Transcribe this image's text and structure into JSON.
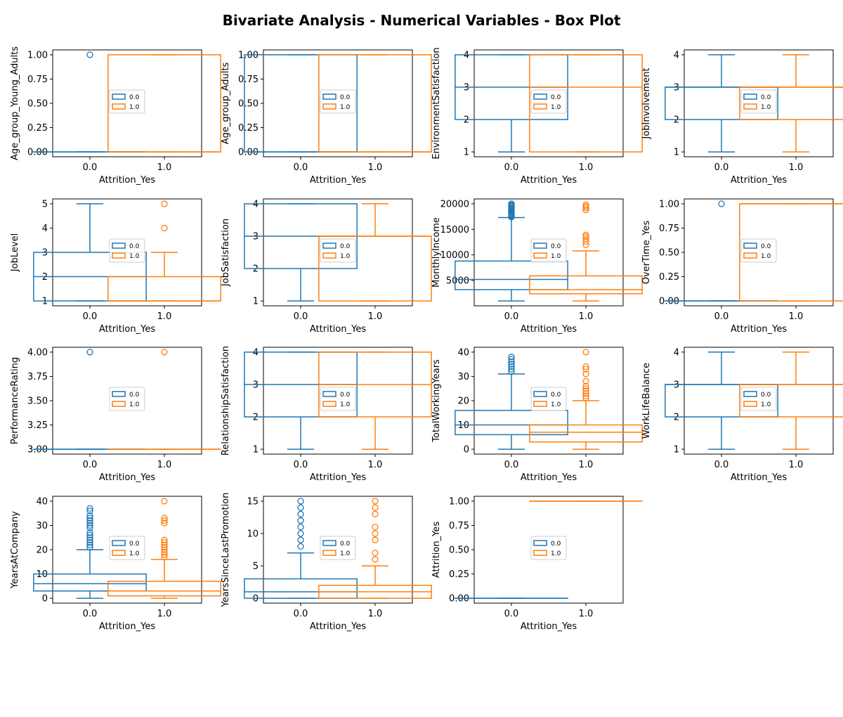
{
  "figure": {
    "title": "Bivariate Analysis - Numerical Variables - Box Plot"
  },
  "colors": {
    "0.0": "#1f77b4",
    "1.0": "#ff7f0e"
  },
  "chart_data": [
    {
      "type": "box",
      "xlabel": "Attrition_Yes",
      "ylabel": "Age_group_Young_Adults",
      "categories": [
        "0.0",
        "1.0"
      ],
      "ylim": [
        -0.05,
        1.05
      ],
      "yticks": [
        "0.00",
        "0.25",
        "0.50",
        "0.75",
        "1.00"
      ],
      "boxes": [
        {
          "group": "0.0",
          "q1": 0,
          "median": 0,
          "q3": 0,
          "whisker_low": 0,
          "whisker_high": 0,
          "outliers": [
            1
          ]
        },
        {
          "group": "1.0",
          "q1": 0,
          "median": 0,
          "q3": 1,
          "whisker_low": 0,
          "whisker_high": 1,
          "outliers": []
        }
      ],
      "legend": [
        "0.0",
        "1.0"
      ]
    },
    {
      "type": "box",
      "xlabel": "Attrition_Yes",
      "ylabel": "Age_group_Adults",
      "categories": [
        "0.0",
        "1.0"
      ],
      "ylim": [
        -0.05,
        1.05
      ],
      "yticks": [
        "0.00",
        "0.25",
        "0.50",
        "0.75",
        "1.00"
      ],
      "boxes": [
        {
          "group": "0.0",
          "q1": 0,
          "median": 0,
          "q3": 1,
          "whisker_low": 0,
          "whisker_high": 1,
          "outliers": []
        },
        {
          "group": "1.0",
          "q1": 0,
          "median": 0,
          "q3": 1,
          "whisker_low": 0,
          "whisker_high": 1,
          "outliers": []
        }
      ],
      "legend": [
        "0.0",
        "1.0"
      ]
    },
    {
      "type": "box",
      "xlabel": "Attrition_Yes",
      "ylabel": "EnvironmentSatisfaction",
      "categories": [
        "0.0",
        "1.0"
      ],
      "ylim": [
        0.85,
        4.15
      ],
      "yticks": [
        "1",
        "2",
        "3",
        "4"
      ],
      "boxes": [
        {
          "group": "0.0",
          "q1": 2,
          "median": 3,
          "q3": 4,
          "whisker_low": 1,
          "whisker_high": 4,
          "outliers": []
        },
        {
          "group": "1.0",
          "q1": 1,
          "median": 3,
          "q3": 4,
          "whisker_low": 1,
          "whisker_high": 4,
          "outliers": []
        }
      ],
      "legend": [
        "0.0",
        "1.0"
      ]
    },
    {
      "type": "box",
      "xlabel": "Attrition_Yes",
      "ylabel": "JobInvolvement",
      "categories": [
        "0.0",
        "1.0"
      ],
      "ylim": [
        0.85,
        4.15
      ],
      "yticks": [
        "1",
        "2",
        "3",
        "4"
      ],
      "boxes": [
        {
          "group": "0.0",
          "q1": 2,
          "median": 3,
          "q3": 3,
          "whisker_low": 1,
          "whisker_high": 4,
          "outliers": []
        },
        {
          "group": "1.0",
          "q1": 2,
          "median": 3,
          "q3": 3,
          "whisker_low": 1,
          "whisker_high": 4,
          "outliers": []
        }
      ],
      "legend": [
        "0.0",
        "1.0"
      ]
    },
    {
      "type": "box",
      "xlabel": "Attrition_Yes",
      "ylabel": "JobLevel",
      "categories": [
        "0.0",
        "1.0"
      ],
      "ylim": [
        0.8,
        5.2
      ],
      "yticks": [
        "1",
        "2",
        "3",
        "4",
        "5"
      ],
      "boxes": [
        {
          "group": "0.0",
          "q1": 1,
          "median": 2,
          "q3": 3,
          "whisker_low": 1,
          "whisker_high": 5,
          "outliers": []
        },
        {
          "group": "1.0",
          "q1": 1,
          "median": 1,
          "q3": 2,
          "whisker_low": 1,
          "whisker_high": 3,
          "outliers": [
            4,
            5
          ]
        }
      ],
      "legend": [
        "0.0",
        "1.0"
      ]
    },
    {
      "type": "box",
      "xlabel": "Attrition_Yes",
      "ylabel": "JobSatisfaction",
      "categories": [
        "0.0",
        "1.0"
      ],
      "ylim": [
        0.85,
        4.15
      ],
      "yticks": [
        "1",
        "2",
        "3",
        "4"
      ],
      "boxes": [
        {
          "group": "0.0",
          "q1": 2,
          "median": 3,
          "q3": 4,
          "whisker_low": 1,
          "whisker_high": 4,
          "outliers": []
        },
        {
          "group": "1.0",
          "q1": 1,
          "median": 3,
          "q3": 3,
          "whisker_low": 1,
          "whisker_high": 4,
          "outliers": []
        }
      ],
      "legend": [
        "0.0",
        "1.0"
      ]
    },
    {
      "type": "box",
      "xlabel": "Attrition_Yes",
      "ylabel": "MonthlyIncome",
      "categories": [
        "0.0",
        "1.0"
      ],
      "ylim": [
        50,
        20950
      ],
      "yticks": [
        "5000",
        "10000",
        "15000",
        "20000"
      ],
      "boxes": [
        {
          "group": "0.0",
          "q1": 3200,
          "median": 5200,
          "q3": 8800,
          "whisker_low": 1000,
          "whisker_high": 17300,
          "outliers": [
            17400,
            17600,
            17800,
            18000,
            18200,
            18400,
            18600,
            18800,
            19000,
            19200,
            19400,
            19600,
            19800,
            20000
          ]
        },
        {
          "group": "1.0",
          "q1": 2400,
          "median": 3200,
          "q3": 5900,
          "whisker_low": 1000,
          "whisker_high": 10800,
          "outliers": [
            12000,
            12600,
            13200,
            13600,
            13900,
            18800,
            19200,
            19500,
            19800
          ]
        }
      ],
      "legend": [
        "0.0",
        "1.0"
      ]
    },
    {
      "type": "box",
      "xlabel": "Attrition_Yes",
      "ylabel": "OverTime_Yes",
      "categories": [
        "0.0",
        "1.0"
      ],
      "ylim": [
        -0.05,
        1.05
      ],
      "yticks": [
        "0.00",
        "0.25",
        "0.50",
        "0.75",
        "1.00"
      ],
      "boxes": [
        {
          "group": "0.0",
          "q1": 0,
          "median": 0,
          "q3": 0,
          "whisker_low": 0,
          "whisker_high": 0,
          "outliers": [
            1
          ]
        },
        {
          "group": "1.0",
          "q1": 0,
          "median": 1,
          "q3": 1,
          "whisker_low": 0,
          "whisker_high": 1,
          "outliers": []
        }
      ],
      "legend": [
        "0.0",
        "1.0"
      ]
    },
    {
      "type": "box",
      "xlabel": "Attrition_Yes",
      "ylabel": "PerformanceRating",
      "categories": [
        "0.0",
        "1.0"
      ],
      "ylim": [
        2.95,
        4.05
      ],
      "yticks": [
        "3.00",
        "3.25",
        "3.50",
        "3.75",
        "4.00"
      ],
      "boxes": [
        {
          "group": "0.0",
          "q1": 3,
          "median": 3,
          "q3": 3,
          "whisker_low": 3,
          "whisker_high": 3,
          "outliers": [
            4
          ]
        },
        {
          "group": "1.0",
          "q1": 3,
          "median": 3,
          "q3": 3,
          "whisker_low": 3,
          "whisker_high": 3,
          "outliers": [
            4
          ]
        }
      ],
      "legend": [
        "0.0",
        "1.0"
      ]
    },
    {
      "type": "box",
      "xlabel": "Attrition_Yes",
      "ylabel": "RelationshipSatisfaction",
      "categories": [
        "0.0",
        "1.0"
      ],
      "ylim": [
        0.85,
        4.15
      ],
      "yticks": [
        "1",
        "2",
        "3",
        "4"
      ],
      "boxes": [
        {
          "group": "0.0",
          "q1": 2,
          "median": 3,
          "q3": 4,
          "whisker_low": 1,
          "whisker_high": 4,
          "outliers": []
        },
        {
          "group": "1.0",
          "q1": 2,
          "median": 3,
          "q3": 4,
          "whisker_low": 1,
          "whisker_high": 4,
          "outliers": []
        }
      ],
      "legend": [
        "0.0",
        "1.0"
      ]
    },
    {
      "type": "box",
      "xlabel": "Attrition_Yes",
      "ylabel": "TotalWorkingYears",
      "categories": [
        "0.0",
        "1.0"
      ],
      "ylim": [
        -2,
        42
      ],
      "yticks": [
        "0",
        "10",
        "20",
        "30",
        "40"
      ],
      "boxes": [
        {
          "group": "0.0",
          "q1": 6,
          "median": 10,
          "q3": 16,
          "whisker_low": 0,
          "whisker_high": 31,
          "outliers": [
            32,
            33,
            34,
            35,
            36,
            37,
            38
          ]
        },
        {
          "group": "1.0",
          "q1": 3,
          "median": 7,
          "q3": 10,
          "whisker_low": 0,
          "whisker_high": 20,
          "outliers": [
            21,
            22,
            23,
            24,
            25,
            26,
            28,
            31,
            33,
            34,
            40
          ]
        }
      ],
      "legend": [
        "0.0",
        "1.0"
      ]
    },
    {
      "type": "box",
      "xlabel": "Attrition_Yes",
      "ylabel": "WorkLifeBalance",
      "categories": [
        "0.0",
        "1.0"
      ],
      "ylim": [
        0.85,
        4.15
      ],
      "yticks": [
        "1",
        "2",
        "3",
        "4"
      ],
      "boxes": [
        {
          "group": "0.0",
          "q1": 2,
          "median": 3,
          "q3": 3,
          "whisker_low": 1,
          "whisker_high": 4,
          "outliers": []
        },
        {
          "group": "1.0",
          "q1": 2,
          "median": 3,
          "q3": 3,
          "whisker_low": 1,
          "whisker_high": 4,
          "outliers": []
        }
      ],
      "legend": [
        "0.0",
        "1.0"
      ]
    },
    {
      "type": "box",
      "xlabel": "Attrition_Yes",
      "ylabel": "YearsAtCompany",
      "categories": [
        "0.0",
        "1.0"
      ],
      "ylim": [
        -2,
        42
      ],
      "yticks": [
        "0",
        "10",
        "20",
        "30",
        "40"
      ],
      "boxes": [
        {
          "group": "0.0",
          "q1": 3,
          "median": 6,
          "q3": 10,
          "whisker_low": 0,
          "whisker_high": 20,
          "outliers": [
            21,
            22,
            23,
            24,
            25,
            26,
            27,
            29,
            30,
            31,
            32,
            33,
            34,
            36,
            37
          ]
        },
        {
          "group": "1.0",
          "q1": 1,
          "median": 3,
          "q3": 7,
          "whisker_low": 0,
          "whisker_high": 16,
          "outliers": [
            17,
            18,
            19,
            20,
            21,
            22,
            23,
            24,
            31,
            32,
            33,
            40
          ]
        }
      ],
      "legend": [
        "0.0",
        "1.0"
      ]
    },
    {
      "type": "box",
      "xlabel": "Attrition_Yes",
      "ylabel": "YearsSinceLastPromotion",
      "categories": [
        "0.0",
        "1.0"
      ],
      "ylim": [
        -0.75,
        15.75
      ],
      "yticks": [
        "0",
        "5",
        "10",
        "15"
      ],
      "boxes": [
        {
          "group": "0.0",
          "q1": 0,
          "median": 1,
          "q3": 3,
          "whisker_low": 0,
          "whisker_high": 7,
          "outliers": [
            8,
            9,
            10,
            11,
            12,
            13,
            14,
            15
          ]
        },
        {
          "group": "1.0",
          "q1": 0,
          "median": 1,
          "q3": 2,
          "whisker_low": 0,
          "whisker_high": 5,
          "outliers": [
            6,
            7,
            9,
            10,
            11,
            13,
            14,
            15
          ]
        }
      ],
      "legend": [
        "0.0",
        "1.0"
      ]
    },
    {
      "type": "box",
      "xlabel": "Attrition_Yes",
      "ylabel": "Attrition_Yes",
      "categories": [
        "0.0",
        "1.0"
      ],
      "ylim": [
        -0.05,
        1.05
      ],
      "yticks": [
        "0.00",
        "0.25",
        "0.50",
        "0.75",
        "1.00"
      ],
      "boxes": [
        {
          "group": "0.0",
          "q1": 0,
          "median": 0,
          "q3": 0,
          "whisker_low": 0,
          "whisker_high": 0,
          "outliers": []
        },
        {
          "group": "1.0",
          "q1": 1,
          "median": 1,
          "q3": 1,
          "whisker_low": 1,
          "whisker_high": 1,
          "outliers": []
        }
      ],
      "legend": [
        "0.0",
        "1.0"
      ]
    }
  ]
}
